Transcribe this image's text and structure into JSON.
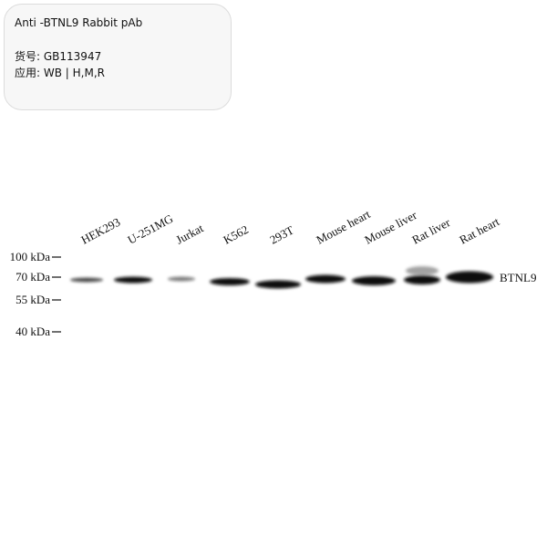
{
  "card": {
    "title": "Anti -BTNL9 Rabbit pAb",
    "catalog_label": "货号:",
    "catalog_number": "GB113947",
    "application_label": "应用:",
    "application": "WB | H,M,R"
  },
  "blot": {
    "lanes": [
      "HEK293",
      "U-251MG",
      "Jurkat",
      "K562",
      "293T",
      "Mouse heart",
      "Mouse liver",
      "Rat liver",
      "Rat heart"
    ],
    "markers": [
      "100 kDa",
      "70 kDa",
      "55 kDa",
      "40 kDa"
    ],
    "band_label": "BTNL9"
  }
}
